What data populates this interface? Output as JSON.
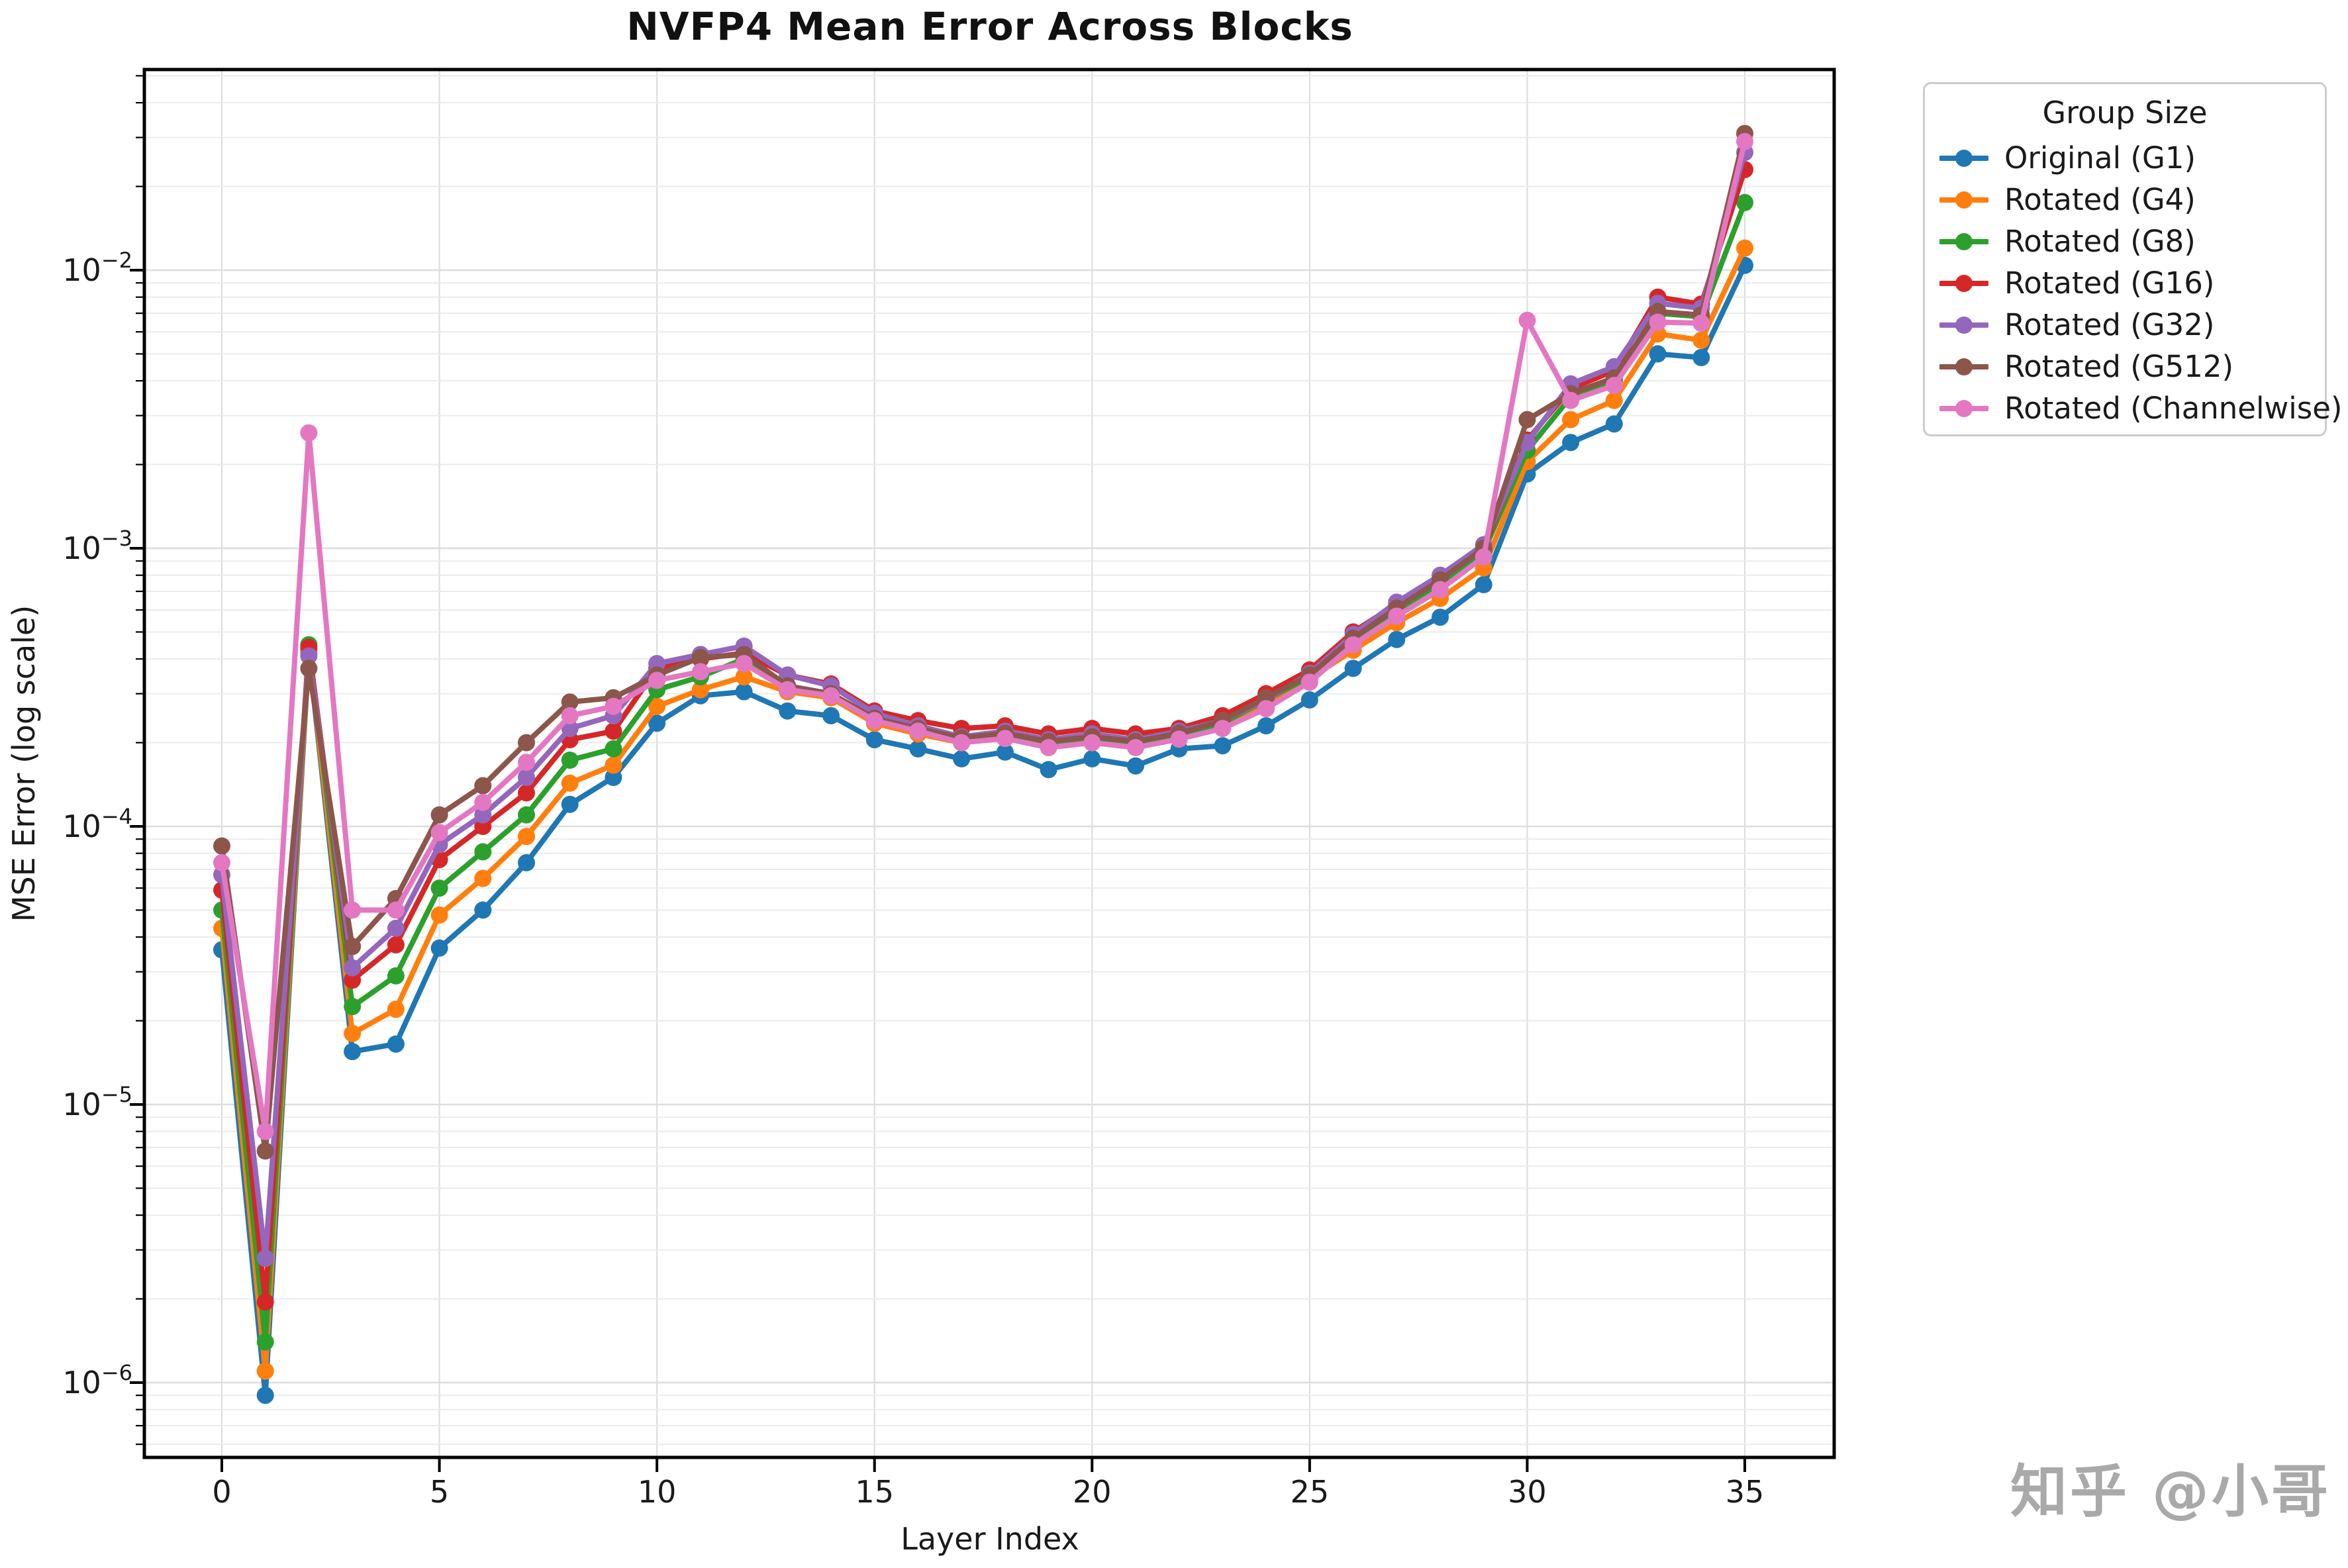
{
  "watermark": "知乎 @小哥",
  "chart_data": {
    "type": "line",
    "title": "NVFP4 Mean Error Across Blocks",
    "xlabel": "Layer Index",
    "ylabel": "MSE Error (log scale)",
    "legend_title": "Group Size",
    "legend_position": "outside-upper-right",
    "yscale": "log",
    "grid": "both-major-and-minor",
    "xlim": [
      -1.8,
      37.0
    ],
    "ylim": [
      5.4e-07,
      0.052
    ],
    "xticks": [
      0,
      5,
      10,
      15,
      20,
      25,
      30,
      35
    ],
    "ytick_exponents": [
      -2,
      -3,
      -4,
      -5,
      -6
    ],
    "x": [
      0,
      1,
      2,
      3,
      4,
      5,
      6,
      7,
      8,
      9,
      10,
      11,
      12,
      13,
      14,
      15,
      16,
      17,
      18,
      19,
      20,
      21,
      22,
      23,
      24,
      25,
      26,
      27,
      28,
      29,
      30,
      31,
      32,
      33,
      34,
      35
    ],
    "series": [
      {
        "name": "Original (G1)",
        "color": "#1f77b4",
        "values": [
          3.6e-05,
          9e-07,
          0.00042,
          1.55e-05,
          1.65e-05,
          3.65e-05,
          5e-05,
          7.4e-05,
          0.00012,
          0.00015,
          0.000235,
          0.000295,
          0.000305,
          0.00026,
          0.00025,
          0.000205,
          0.00019,
          0.000175,
          0.000185,
          0.00016,
          0.000175,
          0.000165,
          0.00019,
          0.000195,
          0.00023,
          0.000285,
          0.00037,
          0.00047,
          0.000565,
          0.00074,
          0.00185,
          0.0024,
          0.0028,
          0.005,
          0.00485,
          0.0104
        ]
      },
      {
        "name": "Rotated (G4)",
        "color": "#ff7f0e",
        "values": [
          4.3e-05,
          1.1e-06,
          0.00043,
          1.8e-05,
          2.2e-05,
          4.8e-05,
          6.5e-05,
          9.2e-05,
          0.000143,
          0.000166,
          0.00027,
          0.00031,
          0.000345,
          0.000305,
          0.00029,
          0.000235,
          0.000215,
          0.0002,
          0.00021,
          0.000195,
          0.0002,
          0.000195,
          0.00021,
          0.00023,
          0.00027,
          0.00034,
          0.00043,
          0.00054,
          0.00066,
          0.00085,
          0.00205,
          0.0029,
          0.0034,
          0.0059,
          0.0056,
          0.012
        ]
      },
      {
        "name": "Rotated (G8)",
        "color": "#2ca02c",
        "values": [
          5e-05,
          1.4e-06,
          0.00045,
          2.25e-05,
          2.9e-05,
          6e-05,
          8.1e-05,
          0.00011,
          0.000173,
          0.00019,
          0.00031,
          0.000345,
          0.0004,
          0.000315,
          0.0003,
          0.000245,
          0.00022,
          0.000205,
          0.000212,
          0.0002,
          0.000206,
          0.0002,
          0.000212,
          0.000235,
          0.000285,
          0.000345,
          0.00047,
          0.000595,
          0.00075,
          0.00097,
          0.00225,
          0.0035,
          0.004,
          0.007,
          0.0068,
          0.0175
        ]
      },
      {
        "name": "Rotated (G16)",
        "color": "#d62728",
        "values": [
          5.9e-05,
          1.95e-06,
          0.00044,
          2.8e-05,
          3.75e-05,
          7.6e-05,
          0.0001,
          0.000132,
          0.000205,
          0.00022,
          0.00037,
          0.0004,
          0.00042,
          0.00035,
          0.000325,
          0.00026,
          0.00024,
          0.000225,
          0.00023,
          0.000215,
          0.000225,
          0.000215,
          0.000225,
          0.00025,
          0.0003,
          0.000365,
          0.0005,
          0.00063,
          0.00079,
          0.001,
          0.00245,
          0.00375,
          0.00435,
          0.008,
          0.00755,
          0.023
        ]
      },
      {
        "name": "Rotated (G32)",
        "color": "#9467bd",
        "values": [
          6.7e-05,
          2.8e-06,
          0.00041,
          3.1e-05,
          4.3e-05,
          8.6e-05,
          0.00011,
          0.00015,
          0.000225,
          0.00025,
          0.000385,
          0.000415,
          0.000445,
          0.00035,
          0.00032,
          0.000255,
          0.00023,
          0.00021,
          0.00022,
          0.000205,
          0.000215,
          0.000205,
          0.00022,
          0.00024,
          0.000285,
          0.000355,
          0.00049,
          0.00064,
          0.0008,
          0.00103,
          0.0024,
          0.0039,
          0.0045,
          0.0076,
          0.0073,
          0.0265
        ]
      },
      {
        "name": "Rotated (G512)",
        "color": "#8c564b",
        "values": [
          8.5e-05,
          6.8e-06,
          0.00037,
          3.7e-05,
          5.5e-05,
          0.00011,
          0.00014,
          0.0002,
          0.00028,
          0.00029,
          0.00035,
          0.000405,
          0.000415,
          0.00032,
          0.0003,
          0.000245,
          0.000225,
          0.000208,
          0.000216,
          0.000202,
          0.00021,
          0.000202,
          0.000216,
          0.00024,
          0.00029,
          0.00035,
          0.000475,
          0.00061,
          0.00077,
          0.001,
          0.0029,
          0.0036,
          0.0041,
          0.0071,
          0.0069,
          0.031
        ]
      },
      {
        "name": "Rotated (Channelwise)",
        "color": "#e377c2",
        "values": [
          7.4e-05,
          8e-06,
          0.0026,
          5e-05,
          5e-05,
          9.5e-05,
          0.000122,
          0.00017,
          0.00025,
          0.00027,
          0.000335,
          0.00036,
          0.000385,
          0.00031,
          0.000295,
          0.00024,
          0.00022,
          0.0002,
          0.000207,
          0.000192,
          0.0002,
          0.000192,
          0.000206,
          0.000225,
          0.000265,
          0.00033,
          0.00045,
          0.00057,
          0.00071,
          0.00093,
          0.0066,
          0.0034,
          0.00385,
          0.0065,
          0.00645,
          0.029
        ]
      }
    ],
    "style": {
      "grid_major_color": "#dedede",
      "grid_minor_color": "#eaeaea",
      "frame_color": "#000000",
      "text_color": "#1a1a1a",
      "watermark_color": "#a9a9a9"
    }
  }
}
